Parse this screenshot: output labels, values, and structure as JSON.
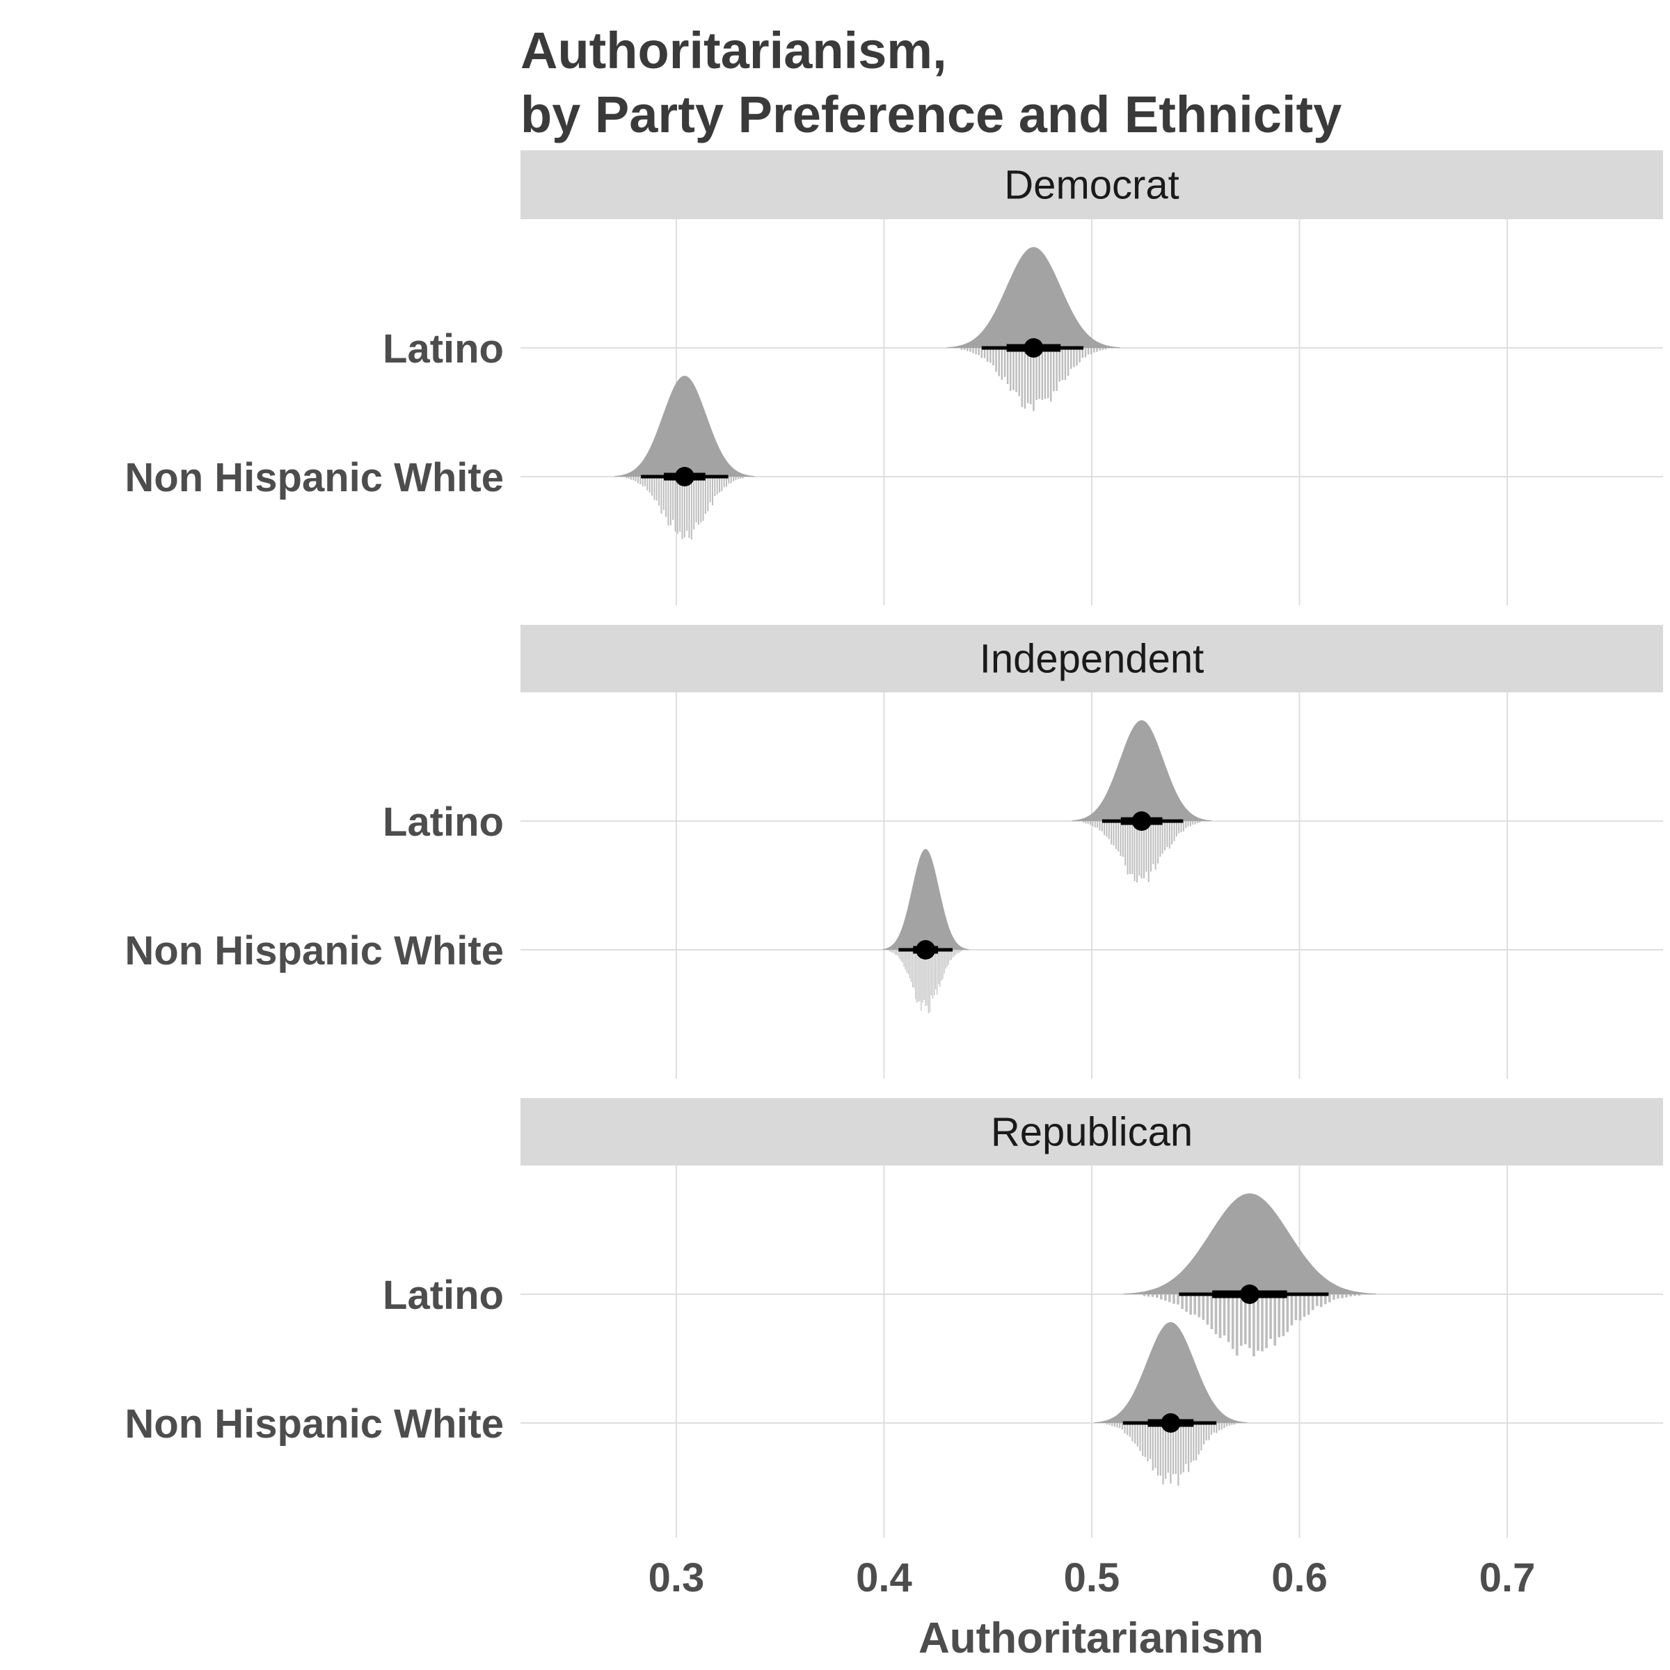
{
  "chart_data": {
    "type": "halfeye",
    "title_lines": [
      "Authoritarianism,",
      "by Party Preference and Ethnicity"
    ],
    "xlabel": "Authoritarianism",
    "ylabel": "",
    "xlim": [
      0.225,
      0.775
    ],
    "xticks": [
      {
        "value": 0.3,
        "label": "0.3"
      },
      {
        "value": 0.4,
        "label": "0.4"
      },
      {
        "value": 0.5,
        "label": "0.5"
      },
      {
        "value": 0.6,
        "label": "0.6"
      },
      {
        "value": 0.7,
        "label": "0.7"
      }
    ],
    "grid": true,
    "colors": {
      "density": "#a3a3a3",
      "dots": "#bdbdbd",
      "strip": "#d9d9d9",
      "interval": "#000000",
      "grid": "#dedede"
    },
    "panels": [
      {
        "facet": "Democrat",
        "groups": [
          {
            "label": "Latino",
            "median": 0.472,
            "sd": 0.013,
            "ci66": [
              0.459,
              0.485
            ],
            "ci95": [
              0.447,
              0.496
            ]
          },
          {
            "label": "Non Hispanic White",
            "median": 0.304,
            "sd": 0.0105,
            "ci66": [
              0.294,
              0.314
            ],
            "ci95": [
              0.283,
              0.325
            ]
          }
        ]
      },
      {
        "facet": "Independent",
        "groups": [
          {
            "label": "Latino",
            "median": 0.524,
            "sd": 0.0105,
            "ci66": [
              0.514,
              0.534
            ],
            "ci95": [
              0.505,
              0.544
            ]
          },
          {
            "label": "Non Hispanic White",
            "median": 0.42,
            "sd": 0.0065,
            "ci66": [
              0.414,
              0.426
            ],
            "ci95": [
              0.407,
              0.433
            ]
          }
        ]
      },
      {
        "facet": "Republican",
        "groups": [
          {
            "label": "Latino",
            "median": 0.576,
            "sd": 0.019,
            "ci66": [
              0.558,
              0.594
            ],
            "ci95": [
              0.542,
              0.614
            ]
          },
          {
            "label": "Non Hispanic White",
            "median": 0.538,
            "sd": 0.0115,
            "ci66": [
              0.527,
              0.549
            ],
            "ci95": [
              0.515,
              0.56
            ]
          }
        ]
      }
    ]
  }
}
